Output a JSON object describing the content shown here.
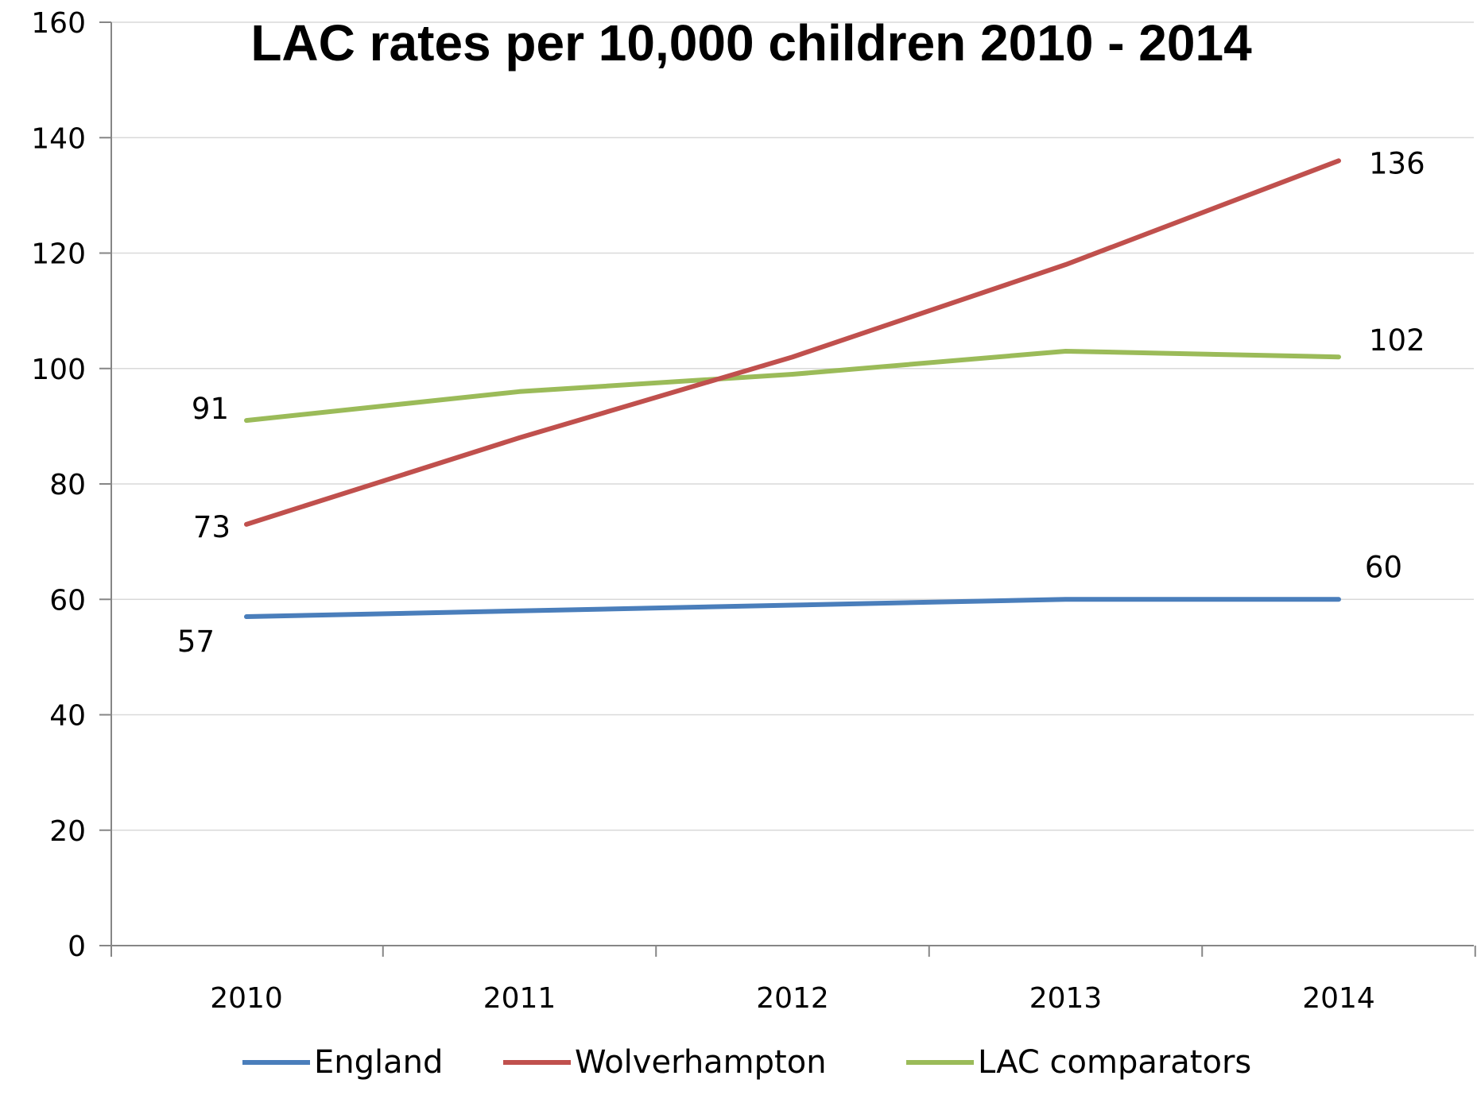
{
  "chart_data": {
    "type": "line",
    "title": "LAC rates per 10,000 children 2010 - 2014",
    "xlabel": "",
    "ylabel": "",
    "categories": [
      "2010",
      "2011",
      "2012",
      "2013",
      "2014"
    ],
    "ylim": [
      0,
      160
    ],
    "yticks": [
      0,
      20,
      40,
      60,
      80,
      100,
      120,
      140,
      160
    ],
    "grid": true,
    "legend": "bottom",
    "series": [
      {
        "name": "England",
        "color": "#4a7ebb",
        "values": [
          57,
          58,
          59,
          60,
          60
        ],
        "labels": [
          {
            "index": 0,
            "text": "57"
          },
          {
            "index": 4,
            "text": "60"
          }
        ]
      },
      {
        "name": "Wolverhampton",
        "color": "#c0504d",
        "values": [
          73,
          88,
          102,
          118,
          136
        ],
        "labels": [
          {
            "index": 0,
            "text": "73"
          },
          {
            "index": 4,
            "text": "136"
          }
        ]
      },
      {
        "name": "LAC comparators",
        "color": "#9bbb59",
        "values": [
          91,
          96,
          99,
          103,
          102
        ],
        "labels": [
          {
            "index": 0,
            "text": "91"
          },
          {
            "index": 4,
            "text": "102"
          }
        ]
      }
    ]
  }
}
